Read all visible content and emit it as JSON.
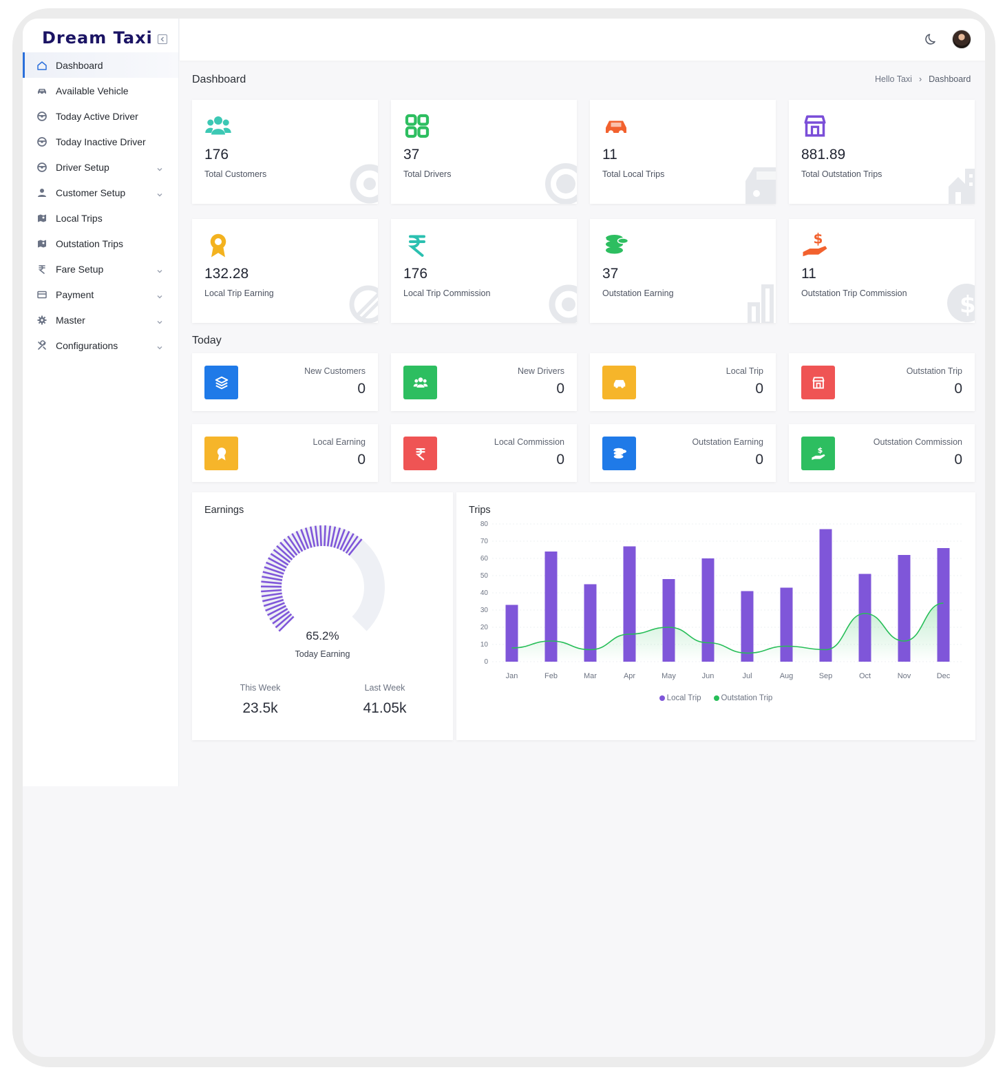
{
  "app": {
    "brand": "Dream Taxi"
  },
  "sidebar": {
    "items": [
      {
        "label": "Dashboard",
        "icon": "home-icon",
        "active": true
      },
      {
        "label": "Available Vehicle",
        "icon": "car-icon"
      },
      {
        "label": "Today Active Driver",
        "icon": "steering-wheel-icon"
      },
      {
        "label": "Today Inactive Driver",
        "icon": "steering-wheel-icon"
      },
      {
        "label": "Driver Setup",
        "icon": "steering-wheel-icon",
        "submenu": true
      },
      {
        "label": "Customer Setup",
        "icon": "user-icon",
        "submenu": true
      },
      {
        "label": "Local Trips",
        "icon": "map-icon"
      },
      {
        "label": "Outstation Trips",
        "icon": "map-icon"
      },
      {
        "label": "Fare Setup",
        "icon": "rupee-icon",
        "submenu": true
      },
      {
        "label": "Payment",
        "icon": "credit-card-icon",
        "submenu": true
      },
      {
        "label": "Master",
        "icon": "gear-icon",
        "submenu": true
      },
      {
        "label": "Configurations",
        "icon": "tools-icon",
        "submenu": true
      }
    ]
  },
  "header": {
    "page_title": "Dashboard",
    "breadcrumb": [
      "Hello Taxi",
      "Dashboard"
    ]
  },
  "stats": [
    {
      "value": "176",
      "label": "Total Customers",
      "icon": "users-icon",
      "color": "#3cc8b4"
    },
    {
      "value": "37",
      "label": "Total Drivers",
      "icon": "grid-icon",
      "color": "#2dbe60"
    },
    {
      "value": "11",
      "label": "Total Local Trips",
      "icon": "car-icon",
      "color": "#f2612e"
    },
    {
      "value": "881.89",
      "label": "Total Outstation Trips",
      "icon": "store-icon",
      "color": "#7a4ed8"
    },
    {
      "value": "132.28",
      "label": "Local Trip Earning",
      "icon": "award-icon",
      "color": "#f3b21f"
    },
    {
      "value": "176",
      "label": "Local Trip Commission",
      "icon": "rupee-icon",
      "color": "#2bc0b0"
    },
    {
      "value": "37",
      "label": "Outstation Earning",
      "icon": "coins-icon",
      "color": "#2dbe60"
    },
    {
      "value": "11",
      "label": "Outstation Trip Commission",
      "icon": "hand-dollar-icon",
      "color": "#f2612e"
    }
  ],
  "today": {
    "title": "Today",
    "items": [
      {
        "label": "New Customers",
        "value": "0",
        "color": "#1f7ae8",
        "icon": "layers-icon"
      },
      {
        "label": "New Drivers",
        "value": "0",
        "color": "#2dbe60",
        "icon": "users-icon"
      },
      {
        "label": "Local Trip",
        "value": "0",
        "color": "#f6b52a",
        "icon": "car-icon"
      },
      {
        "label": "Outstation Trip",
        "value": "0",
        "color": "#ef5454",
        "icon": "store-icon"
      },
      {
        "label": "Local Earning",
        "value": "0",
        "color": "#f6b52a",
        "icon": "award-icon"
      },
      {
        "label": "Local Commission",
        "value": "0",
        "color": "#ef5454",
        "icon": "rupee-icon"
      },
      {
        "label": "Outstation Earning",
        "value": "0",
        "color": "#1f7ae8",
        "icon": "coins-icon"
      },
      {
        "label": "Outstation Commission",
        "value": "0",
        "color": "#2dbe60",
        "icon": "hand-dollar-icon"
      }
    ]
  },
  "earnings": {
    "title": "Earnings",
    "percent": "65.2%",
    "percent_value": 65.2,
    "subtitle": "Today Earning",
    "this_week_label": "This Week",
    "this_week_value": "23.5k",
    "last_week_label": "Last Week",
    "last_week_value": "41.05k",
    "color": "#7f56d9"
  },
  "trips": {
    "title": "Trips",
    "chart_data": {
      "type": "bar",
      "categories": [
        "Jan",
        "Feb",
        "Mar",
        "Apr",
        "May",
        "Jun",
        "Jul",
        "Aug",
        "Sep",
        "Oct",
        "Nov",
        "Dec"
      ],
      "ylim": [
        0,
        80
      ],
      "yticks": [
        0,
        10,
        20,
        30,
        40,
        50,
        60,
        70,
        80
      ],
      "series": [
        {
          "name": "Local Trip",
          "type": "bar",
          "color": "#7f56d9",
          "values": [
            33,
            64,
            45,
            67,
            48,
            60,
            41,
            43,
            77,
            51,
            62,
            66
          ]
        },
        {
          "name": "Outstation Trip",
          "type": "area",
          "color": "#27be58",
          "values": [
            8,
            12,
            7,
            16,
            20,
            11,
            5,
            9,
            7,
            28,
            12,
            34
          ]
        }
      ],
      "legend": "bottom"
    }
  }
}
